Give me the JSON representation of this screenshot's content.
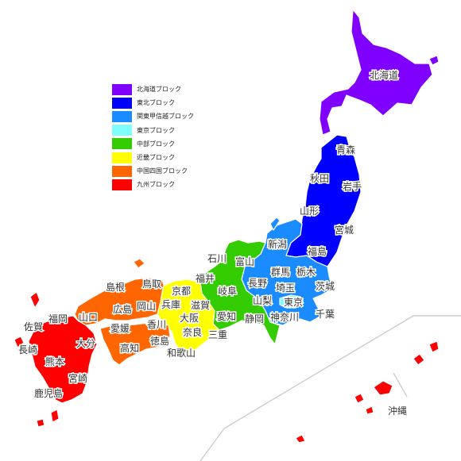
{
  "legend": [
    {
      "label": "北海道ブロック",
      "color": "#8000ff"
    },
    {
      "label": "東北ブロック",
      "color": "#0000ff"
    },
    {
      "label": "関東甲信越ブロック",
      "color": "#1a8cff"
    },
    {
      "label": "東京ブロック",
      "color": "#80ffff"
    },
    {
      "label": "中部ブロック",
      "color": "#33cc00"
    },
    {
      "label": "近畿ブロック",
      "color": "#ffff00"
    },
    {
      "label": "中国四国ブロック",
      "color": "#ff6600"
    },
    {
      "label": "九州ブロック",
      "color": "#ff0000"
    }
  ],
  "labels": {
    "hokkaido": "北海道",
    "aomori": "青森",
    "akita": "秋田",
    "iwate": "岩手",
    "yamagata": "山形",
    "miyagi": "宮城",
    "fukushima": "福島",
    "niigata": "新潟",
    "gunma": "群馬",
    "tochigi": "栃木",
    "ibaraki": "茨城",
    "saitama": "埼玉",
    "tokyo": "東京",
    "chiba": "千葉",
    "kanagawa": "神奈川",
    "yamanashi": "山梨",
    "nagano": "長野",
    "toyama": "富山",
    "ishikawa": "石川",
    "fukui": "福井",
    "gifu": "岐阜",
    "shizuoka": "静岡",
    "aichi": "愛知",
    "kyoto": "京都",
    "shiga": "滋賀",
    "hyogo": "兵庫",
    "osaka": "大阪",
    "nara": "奈良",
    "mie": "三重",
    "wakayama": "和歌山",
    "tottori": "鳥取",
    "shimane": "島根",
    "okayama": "岡山",
    "hiroshima": "広島",
    "yamaguchi": "山口",
    "kagawa": "香川",
    "tokushima": "徳島",
    "ehime": "愛媛",
    "kochi": "高知",
    "fukuoka": "福岡",
    "saga": "佐賀",
    "nagasaki": "長崎",
    "oita": "大分",
    "kumamoto": "熊本",
    "miyazaki": "宮崎",
    "kagoshima": "鹿児島",
    "okinawa": "沖縄"
  }
}
